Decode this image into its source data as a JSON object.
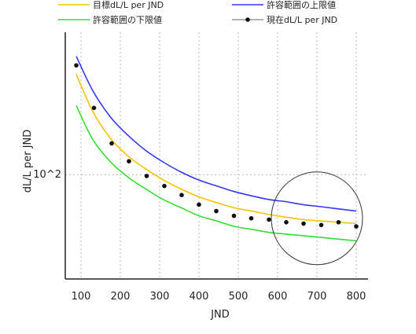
{
  "chart_data": {
    "type": "line",
    "xlabel": "JND",
    "ylabel": "dL/L per JND",
    "y_scale": "log",
    "xlim": [
      60,
      830
    ],
    "ylim": [
      20,
      900
    ],
    "x_ticks": [
      100,
      200,
      300,
      400,
      500,
      600,
      700,
      800
    ],
    "x_tick_labels": [
      "100",
      "200",
      "300",
      "400",
      "500",
      "600",
      "700",
      "800"
    ],
    "y_ticks": [
      100
    ],
    "y_tick_labels": [
      "10^2"
    ],
    "grid": true,
    "legend_position": "top",
    "series": [
      {
        "name": "目標dL/L per JND",
        "color": "#f5c400",
        "style": "line",
        "x": [
          88,
          130,
          175,
          220,
          265,
          310,
          355,
          400,
          445,
          490,
          535,
          580,
          620,
          665,
          710,
          755,
          800
        ],
        "y": [
          470,
          265,
          175,
          133,
          109,
          92,
          80,
          71,
          65,
          60,
          57,
          54,
          52,
          50,
          49,
          48,
          47
        ]
      },
      {
        "name": "許容範囲の上限値",
        "color": "#3535ff",
        "style": "line",
        "x": [
          88,
          130,
          175,
          220,
          265,
          310,
          355,
          400,
          445,
          490,
          535,
          580,
          620,
          665,
          710,
          755,
          800
        ],
        "y": [
          620,
          365,
          243,
          183,
          145,
          121,
          104,
          92,
          84,
          77,
          72,
          68,
          66,
          63,
          61,
          59,
          57
        ]
      },
      {
        "name": "許容範囲の下限値",
        "color": "#33dd33",
        "style": "line",
        "x": [
          88,
          130,
          175,
          220,
          265,
          310,
          355,
          400,
          445,
          490,
          535,
          580,
          620,
          665,
          710,
          755,
          800
        ],
        "y": [
          290,
          172,
          122,
          96,
          80,
          68,
          60,
          53,
          49,
          45,
          43,
          41,
          40,
          39,
          38,
          37,
          36
        ]
      },
      {
        "name": "現在dL/L per JND",
        "color": "#111111",
        "style": "scatter",
        "x": [
          88,
          133,
          178,
          222,
          267,
          312,
          356,
          400,
          444,
          489,
          533,
          578,
          622,
          666,
          711,
          755,
          800
        ],
        "y": [
          540,
          280,
          162,
          123,
          98,
          84,
          73,
          63,
          57,
          53,
          51,
          50,
          48,
          47,
          46,
          48,
          45
        ]
      }
    ],
    "annotations": [
      {
        "type": "circle",
        "center": [
          700,
          51
        ]
      }
    ]
  }
}
